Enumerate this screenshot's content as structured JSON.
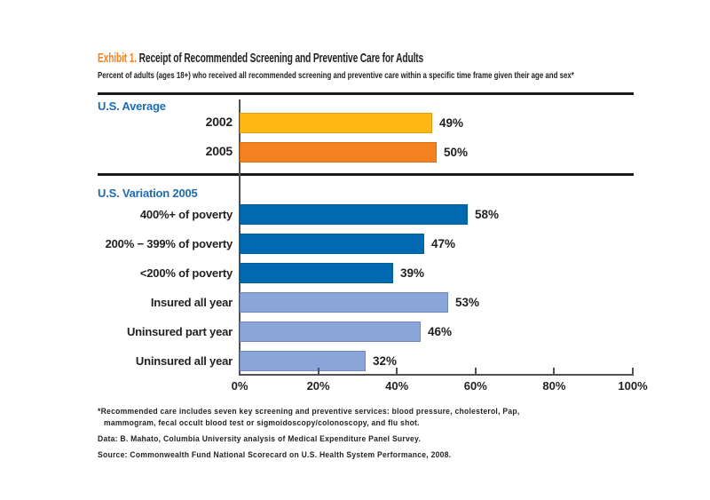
{
  "header": {
    "exhibit_label": "Exhibit 1.",
    "title": "Receipt of Recommended Screening and Preventive Care for Adults",
    "subtitle": "Percent of adults (ages 18+) who received all recommended screening and preventive care within a specific time frame given their age and sex*"
  },
  "chart_data": {
    "type": "bar",
    "orientation": "horizontal",
    "value_unit": "%",
    "xlim": [
      0,
      100
    ],
    "x_tick_labels": [
      "0%",
      "20%",
      "40%",
      "60%",
      "80%",
      "100%"
    ],
    "grid": false,
    "sections": [
      {
        "label": "U.S. Average",
        "rows": [
          {
            "category": "2002",
            "value": 49,
            "value_label": "49%",
            "color": "#FDB813",
            "border": "#DC9A15"
          },
          {
            "category": "2005",
            "value": 50,
            "value_label": "50%",
            "color": "#F58220",
            "border": "#D76E12"
          }
        ]
      },
      {
        "label": "U.S. Variation 2005",
        "rows": [
          {
            "category": "400%+ of poverty",
            "value": 58,
            "value_label": "58%",
            "color": "#0069AF",
            "border": "#015D93"
          },
          {
            "category": "200% − 399% of poverty",
            "value": 47,
            "value_label": "47%",
            "color": "#0069AF",
            "border": "#015D93"
          },
          {
            "category": "<200% of poverty",
            "value": 39,
            "value_label": "39%",
            "color": "#0069AF",
            "border": "#015D93"
          },
          {
            "category": "Insured all year",
            "value": 53,
            "value_label": "53%",
            "color": "#8CA5D8",
            "border": "#7188BE"
          },
          {
            "category": "Uninsured part year",
            "value": 46,
            "value_label": "46%",
            "color": "#8CA5D8",
            "border": "#7188BE"
          },
          {
            "category": "Uninsured all year",
            "value": 32,
            "value_label": "32%",
            "color": "#8CA5D8",
            "border": "#7188BE"
          }
        ]
      }
    ]
  },
  "footnotes": {
    "asterisk_line1": "*Recommended care includes seven key screening and preventive services: blood pressure, cholesterol, Pap,",
    "asterisk_line2": "mammogram, fecal occult blood test or sigmoidoscopy/colonoscopy, and flu shot.",
    "data_label": "Data:",
    "data_text": " B. Mahato, Columbia University analysis of Medical Expenditure Panel Survey.",
    "source_label": "Source:",
    "source_text": " Commonwealth Fund National Scorecard on U.S. Health System Performance, 2008."
  },
  "colors": {
    "accent_orange": "#F58220",
    "section_blue": "#1C6CB5",
    "bar_yellow": "#FDB813",
    "bar_orange": "#F58220",
    "bar_dark_blue": "#0069AF",
    "bar_light_blue": "#8CA5D8",
    "axis_gray": "#505154",
    "rule_black": "#1A1A1A",
    "text_black": "#231F20"
  }
}
